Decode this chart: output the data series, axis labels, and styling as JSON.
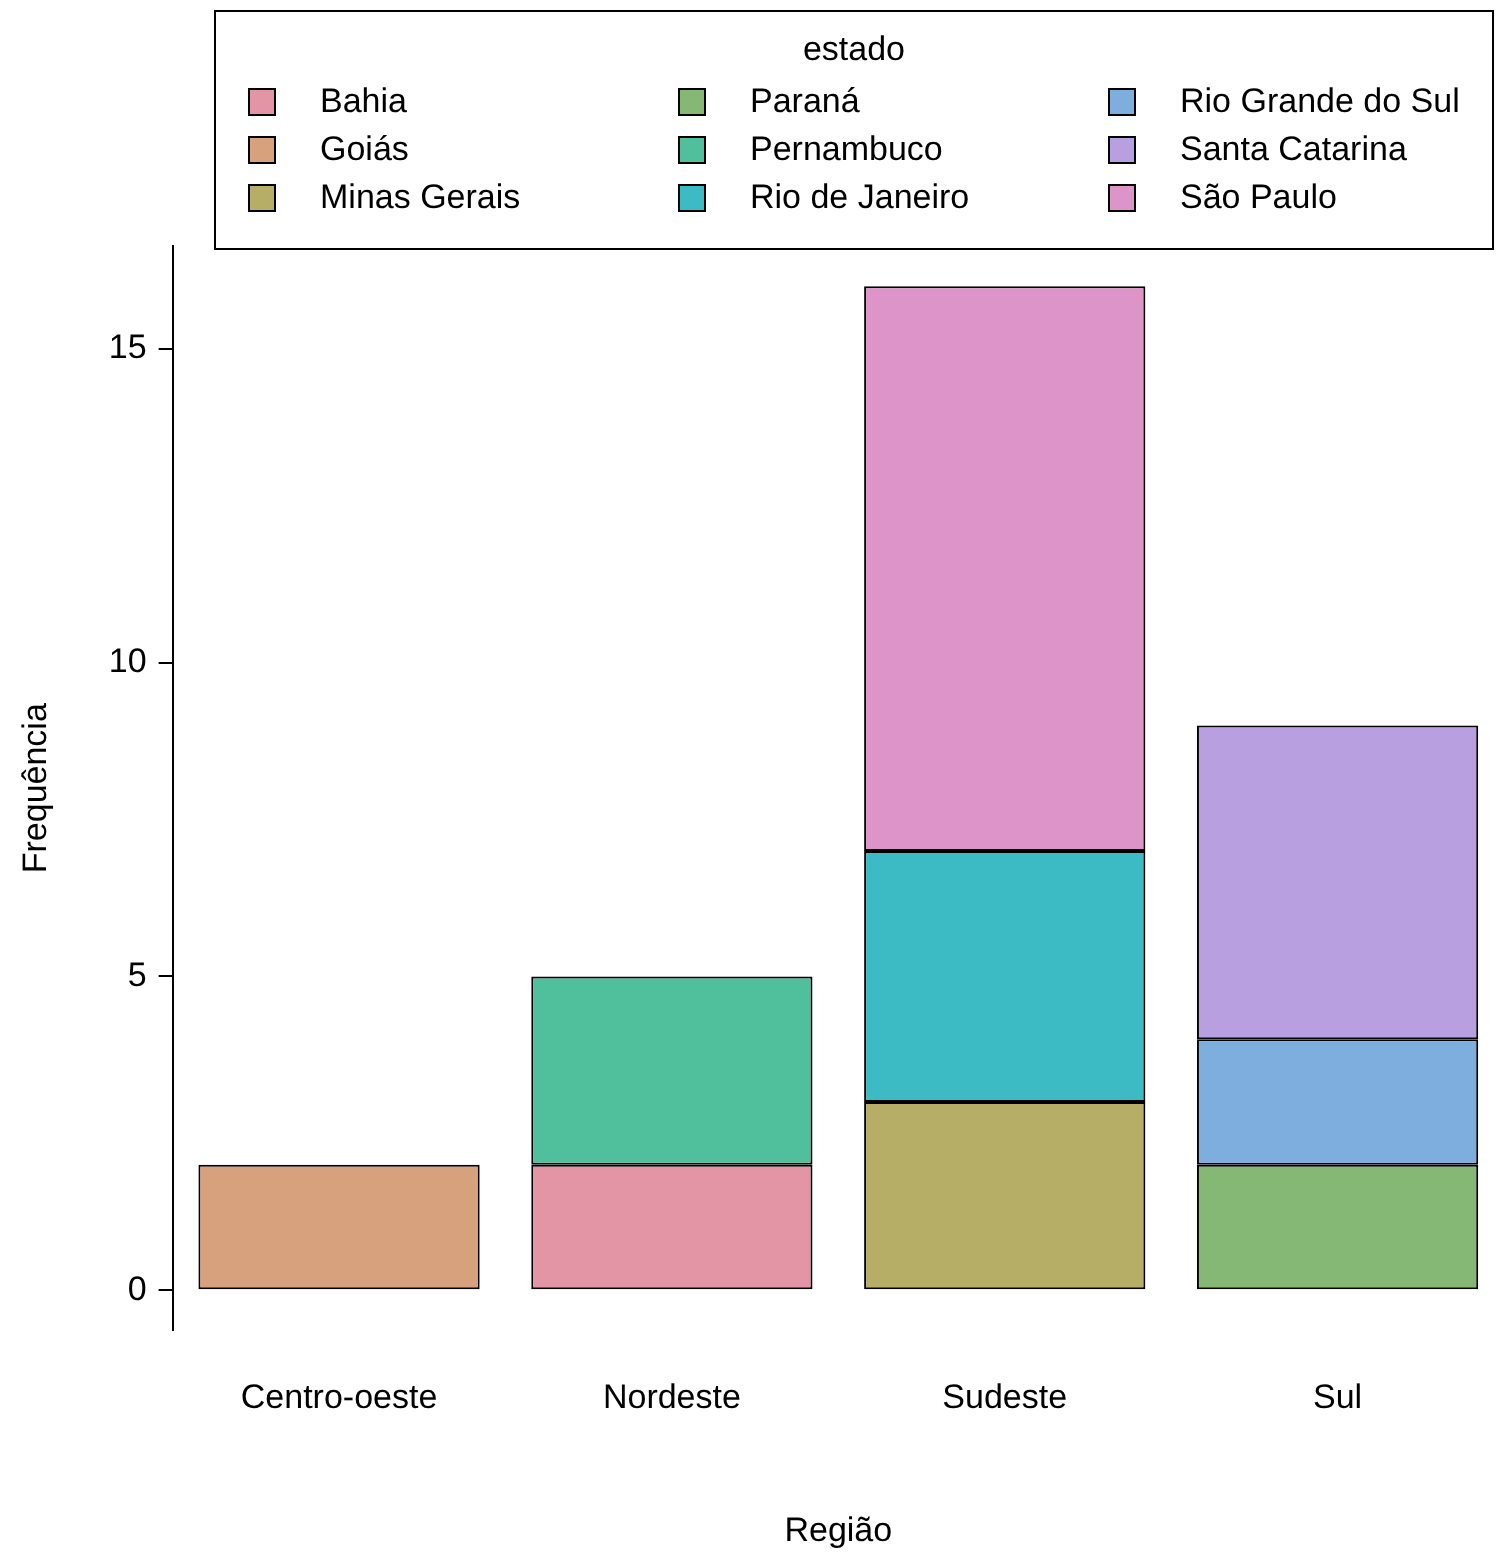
{
  "chart_data": {
    "type": "bar",
    "stacked": true,
    "xlabel": "Região",
    "ylabel": "Frequência",
    "legend_title": "estado",
    "legend": "top",
    "grid": false,
    "categories": [
      "Centro-oeste",
      "Nordeste",
      "Sudeste",
      "Sul"
    ],
    "ylim": [
      -0.64,
      16.64
    ],
    "yticks": [
      0,
      5,
      10,
      15
    ],
    "series": [
      {
        "name": "Bahia",
        "color": "#e495a5",
        "values": [
          null,
          2,
          null,
          null
        ]
      },
      {
        "name": "Goiás",
        "color": "#d6a17c",
        "values": [
          2,
          null,
          null,
          null
        ]
      },
      {
        "name": "Minas Gerais",
        "color": "#b6ae66",
        "values": [
          null,
          null,
          3,
          null
        ]
      },
      {
        "name": "Paraná",
        "color": "#86b875",
        "values": [
          null,
          null,
          null,
          2
        ]
      },
      {
        "name": "Pernambuco",
        "color": "#4fbf9c",
        "values": [
          null,
          3,
          null,
          null
        ]
      },
      {
        "name": "Rio de Janeiro",
        "color": "#3dbbc4",
        "values": [
          null,
          null,
          4,
          null
        ]
      },
      {
        "name": "Rio Grande do Sul",
        "color": "#7daedd",
        "values": [
          null,
          null,
          null,
          2
        ]
      },
      {
        "name": "Santa Catarina",
        "color": "#b79fe0",
        "values": [
          null,
          null,
          null,
          5
        ]
      },
      {
        "name": "São Paulo",
        "color": "#dd94c9",
        "values": [
          null,
          null,
          9,
          null
        ]
      }
    ]
  }
}
